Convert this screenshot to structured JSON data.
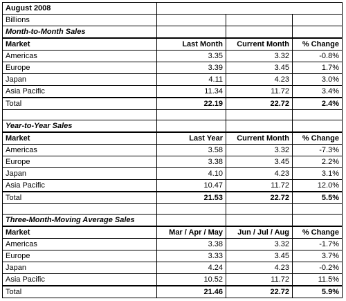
{
  "header": {
    "title": "August 2008",
    "units": "Billions"
  },
  "sections": [
    {
      "title": "Month-to-Month Sales",
      "columns": [
        "Market",
        "Last Month",
        "Current Month",
        "% Change"
      ],
      "rows": [
        {
          "market": "Americas",
          "prev": "3.35",
          "current": "3.32",
          "change": "-0.8%"
        },
        {
          "market": "Europe",
          "prev": "3.39",
          "current": "3.45",
          "change": "1.7%"
        },
        {
          "market": "Japan",
          "prev": "4.11",
          "current": "4.23",
          "change": "3.0%"
        },
        {
          "market": "Asia Pacific",
          "prev": "11.34",
          "current": "11.72",
          "change": "3.4%"
        }
      ],
      "total": {
        "market": "Total",
        "prev": "22.19",
        "current": "22.72",
        "change": "2.4%"
      }
    },
    {
      "title": "Year-to-Year Sales",
      "columns": [
        "Market",
        "Last Year",
        "Current Month",
        "% Change"
      ],
      "rows": [
        {
          "market": "Americas",
          "prev": "3.58",
          "current": "3.32",
          "change": "-7.3%"
        },
        {
          "market": "Europe",
          "prev": "3.38",
          "current": "3.45",
          "change": "2.2%"
        },
        {
          "market": "Japan",
          "prev": "4.10",
          "current": "4.23",
          "change": "3.1%"
        },
        {
          "market": "Asia Pacific",
          "prev": "10.47",
          "current": "11.72",
          "change": "12.0%"
        }
      ],
      "total": {
        "market": "Total",
        "prev": "21.53",
        "current": "22.72",
        "change": "5.5%"
      }
    },
    {
      "title": "Three-Month-Moving Average Sales",
      "columns": [
        "Market",
        "Mar / Apr / May",
        "Jun / Jul / Aug",
        "% Change"
      ],
      "rows": [
        {
          "market": "Americas",
          "prev": "3.38",
          "current": "3.32",
          "change": "-1.7%"
        },
        {
          "market": "Europe",
          "prev": "3.33",
          "current": "3.45",
          "change": "3.7%"
        },
        {
          "market": "Japan",
          "prev": "4.24",
          "current": "4.23",
          "change": "-0.2%"
        },
        {
          "market": "Asia Pacific",
          "prev": "10.52",
          "current": "11.72",
          "change": "11.5%"
        }
      ],
      "total": {
        "market": "Total",
        "prev": "21.46",
        "current": "22.72",
        "change": "5.9%"
      }
    }
  ]
}
